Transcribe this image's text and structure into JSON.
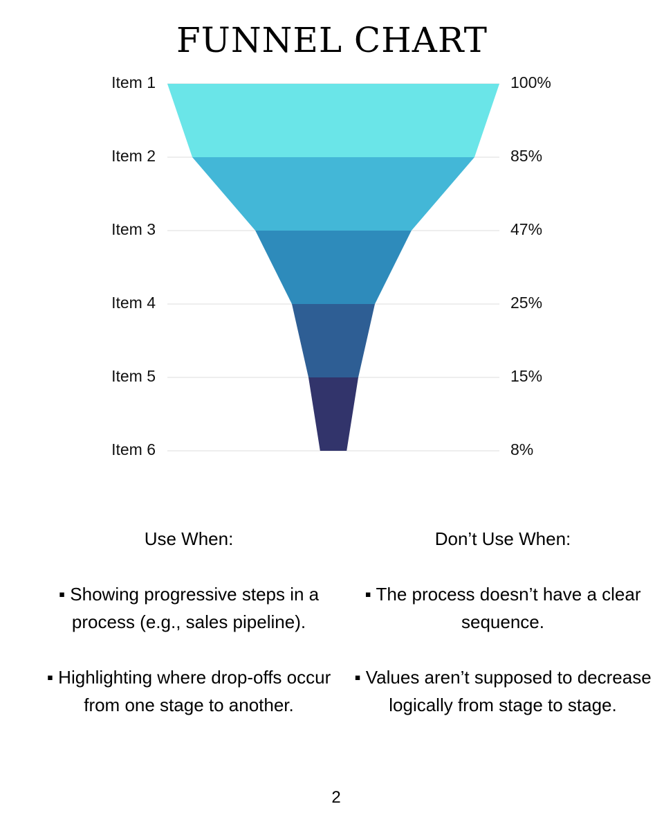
{
  "page": {
    "title": "FUNNEL CHART",
    "page_number": "2"
  },
  "use_when": {
    "heading": "Use When:",
    "bullets": [
      "▪ Showing progressive steps in a process (e.g., sales pipeline).",
      "▪ Highlighting where drop-offs occur from one stage to another."
    ]
  },
  "dont_use_when": {
    "heading": "Don’t Use When:",
    "bullets": [
      "▪ The process doesn’t have a clear sequence.",
      "▪ Values aren’t supposed to decrease logically from stage to stage."
    ]
  },
  "chart_data": {
    "type": "funnel",
    "title": "FUNNEL CHART",
    "categories": [
      "Item 1",
      "Item 2",
      "Item 3",
      "Item 4",
      "Item 5",
      "Item 6"
    ],
    "values": [
      100,
      85,
      47,
      25,
      15,
      8
    ],
    "value_labels": [
      "100%",
      "85%",
      "47%",
      "25%",
      "15%",
      "8%"
    ],
    "colors": [
      "#6ae5e8",
      "#43b7d7",
      "#2e8bbb",
      "#2e5e94",
      "#32346b"
    ],
    "gridline_color": "#dddddd",
    "grid": true
  }
}
